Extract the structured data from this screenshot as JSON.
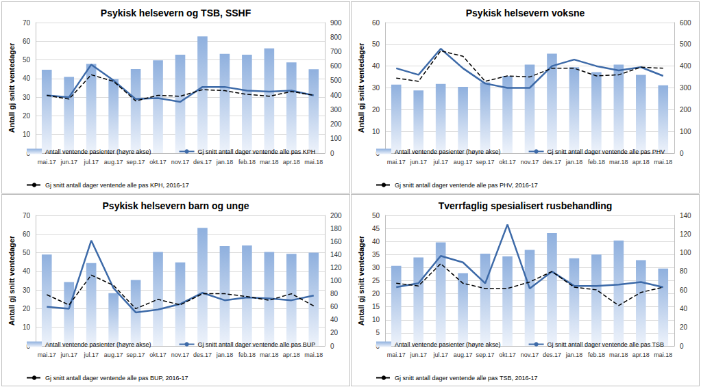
{
  "chart_data": [
    {
      "type": "combo",
      "title": "Psykisk helsevern og TSB, SSHF",
      "y_label": "Antall gj snitt ventedager",
      "categories": [
        "mai.17",
        "jun.17",
        "jul.17",
        "aug.17",
        "sep.17",
        "okt.17",
        "nov.17",
        "des.17",
        "jan.18",
        "feb.18",
        "mar.18",
        "apr.18",
        "mai.18"
      ],
      "ylim": [
        0,
        70
      ],
      "yticks": [
        0,
        10,
        20,
        30,
        40,
        50,
        60,
        70
      ],
      "y2lim": [
        0,
        900
      ],
      "y2ticks": [
        0,
        100,
        200,
        300,
        400,
        500,
        600,
        700,
        800,
        900
      ],
      "grid": true,
      "legend": "bottom",
      "series": [
        {
          "name": "Antall ventende pasienter (høyre akse)",
          "type": "bar",
          "axis": "y2",
          "color": "#8fb0de",
          "values": [
            575,
            525,
            615,
            510,
            580,
            640,
            678,
            805,
            685,
            678,
            722,
            625,
            578
          ]
        },
        {
          "name": "Gj snitt antall dager ventende alle pas KPH",
          "type": "line",
          "color": "#3d6aa8",
          "line_style": "solid",
          "values": [
            31,
            30,
            47.5,
            39,
            29,
            29.5,
            27.5,
            35.5,
            35.5,
            33.5,
            33,
            33.5,
            31
          ]
        },
        {
          "name": "Gj snitt antall dager ventende alle pas KPH, 2016-17",
          "type": "line",
          "color": "#000000",
          "line_style": "dashed",
          "values": [
            31,
            29,
            42,
            38.5,
            28,
            31,
            30.5,
            34,
            33.5,
            31.5,
            30.5,
            33,
            31
          ]
        }
      ]
    },
    {
      "type": "combo",
      "title": "Psykisk helsevern voksne",
      "y_label": "Antall gj snitt ventedager",
      "categories": [
        "mai.17",
        "jun.17",
        "jul.17",
        "aug.17",
        "sep.17",
        "okt.17",
        "nov.17",
        "des.17",
        "jan.18",
        "feb.18",
        "mar.18",
        "apr.18",
        "mai.18"
      ],
      "ylim": [
        0,
        60
      ],
      "yticks": [
        0,
        10,
        20,
        30,
        40,
        50,
        60
      ],
      "y2lim": [
        0,
        600
      ],
      "y2ticks": [
        0,
        100,
        200,
        300,
        400,
        500,
        600
      ],
      "grid": true,
      "legend": "bottom",
      "series": [
        {
          "name": "Antall ventende pasienter (høyre akse)",
          "type": "bar",
          "axis": "y2",
          "color": "#8fb0de",
          "values": [
            315,
            288,
            318,
            305,
            325,
            355,
            407,
            457,
            395,
            372,
            407,
            360,
            312
          ]
        },
        {
          "name": "Gj snitt antall dager ventende alle pas PHV",
          "type": "line",
          "color": "#3d6aa8",
          "line_style": "solid",
          "values": [
            39,
            36,
            48,
            39,
            32,
            30,
            30,
            40,
            43,
            40,
            38,
            39.5,
            35.5
          ]
        },
        {
          "name": "Gj snitt antall dager ventende alle pas PHV, 2016-17",
          "type": "line",
          "color": "#000000",
          "line_style": "dashed",
          "values": [
            34.5,
            33,
            47,
            44.5,
            33,
            35.5,
            35,
            39,
            39,
            35.5,
            36,
            39.5,
            39
          ]
        }
      ]
    },
    {
      "type": "combo",
      "title": "Psykisk helsevern barn og unge",
      "y_label": "Antall gj snitt ventedager",
      "categories": [
        "mai.17",
        "jun.17",
        "jul.17",
        "aug.17",
        "sep.17",
        "okt.17",
        "nov.17",
        "des.17",
        "jan.18",
        "feb.18",
        "mar.18",
        "apr.18",
        "mai.18"
      ],
      "ylim": [
        0,
        70
      ],
      "yticks": [
        0,
        10,
        20,
        30,
        40,
        50,
        60,
        70
      ],
      "y2lim": [
        0,
        200
      ],
      "y2ticks": [
        0,
        20,
        40,
        60,
        80,
        100,
        120,
        140,
        160,
        180,
        200
      ],
      "grid": true,
      "legend": "bottom",
      "series": [
        {
          "name": "Antall ventende pasienter (høyre akse)",
          "type": "bar",
          "axis": "y2",
          "color": "#8fb0de",
          "values": [
            140,
            98,
            127,
            81,
            101,
            144,
            128,
            181,
            153,
            154,
            144,
            141,
            143
          ]
        },
        {
          "name": "Gj snitt antall dager ventende alle pas BUP",
          "type": "line",
          "color": "#3d6aa8",
          "line_style": "solid",
          "values": [
            21,
            20,
            56.5,
            31,
            18,
            19.5,
            22.5,
            28.5,
            24.5,
            26,
            25.5,
            24.5,
            27
          ]
        },
        {
          "name": "Gj snitt antall dager ventende alle pas BUP, 2016-17",
          "type": "line",
          "color": "#000000",
          "line_style": "dashed",
          "values": [
            27.5,
            22,
            38,
            32.5,
            20,
            25,
            22,
            28,
            28,
            26.5,
            24.5,
            28,
            21.5
          ]
        }
      ]
    },
    {
      "type": "combo",
      "title": "Tverrfaglig spesialisert rusbehandling",
      "y_label": "Antall gj snitt ventedager",
      "categories": [
        "mai.17",
        "jun.17",
        "jul.17",
        "aug.17",
        "sep.17",
        "okt.17",
        "nov.17",
        "des.17",
        "jan.18",
        "feb.18",
        "mar.18",
        "apr.18",
        "mai.18"
      ],
      "ylim": [
        0,
        50
      ],
      "yticks": [
        0,
        5,
        10,
        15,
        20,
        25,
        30,
        35,
        40,
        45,
        50
      ],
      "y2lim": [
        0,
        140
      ],
      "y2ticks": [
        0,
        20,
        40,
        60,
        80,
        100,
        120,
        140
      ],
      "grid": true,
      "legend": "bottom",
      "series": [
        {
          "name": "Antall ventende pasienter (høyre akse)",
          "type": "bar",
          "axis": "y2",
          "color": "#8fb0de",
          "values": [
            86,
            95,
            111,
            78,
            99,
            96,
            103,
            121,
            94,
            98,
            113,
            92,
            83
          ]
        },
        {
          "name": "Gj snitt antall dager ventende alle pas TSB",
          "type": "line",
          "color": "#3d6aa8",
          "line_style": "solid",
          "values": [
            22.5,
            24,
            34.5,
            32,
            24,
            46.5,
            22,
            28.5,
            23,
            23,
            23.5,
            24.5,
            22.5
          ]
        },
        {
          "name": "Gj snitt antall dager ventende alle pas TSB, 2016-17",
          "type": "line",
          "color": "#000000",
          "line_style": "dashed",
          "values": [
            24,
            23,
            31.5,
            24,
            22,
            22,
            24.5,
            28.5,
            22.5,
            21.5,
            15.5,
            20.5,
            22.5
          ]
        }
      ]
    }
  ]
}
